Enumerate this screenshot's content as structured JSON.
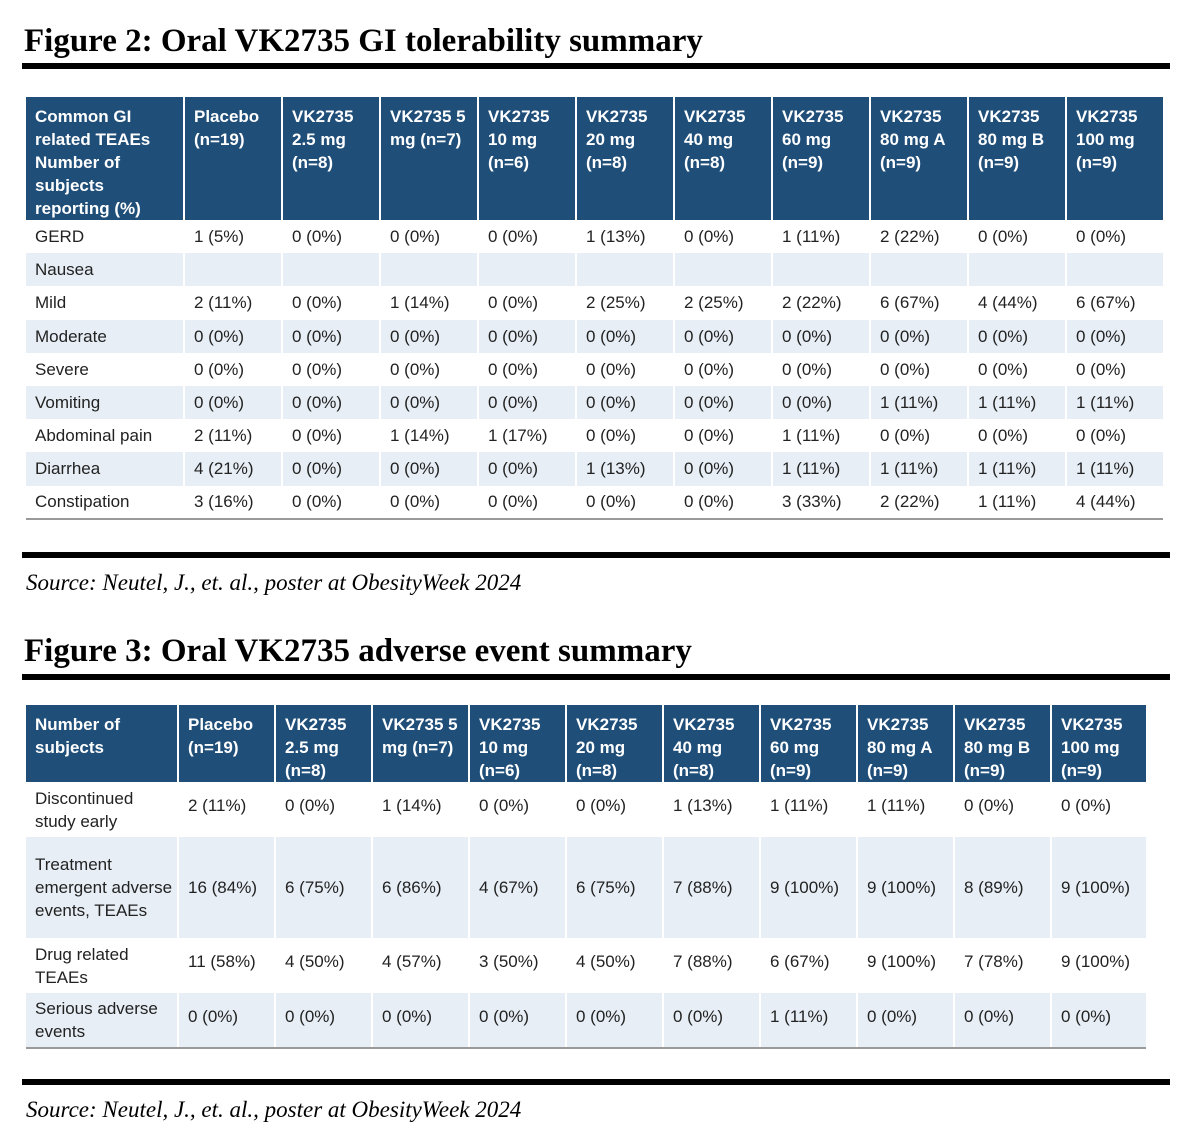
{
  "figure2": {
    "title": "Figure 2: Oral VK2735 GI tolerability summary",
    "headers": [
      "Common GI related TEAEs Number of subjects reporting (%)",
      "Placebo (n=19)",
      "VK2735 2.5 mg (n=8)",
      "VK2735 5 mg (n=7)",
      "VK2735 10 mg (n=6)",
      "VK2735 20 mg (n=8)",
      "VK2735 40 mg (n=8)",
      "VK2735 60 mg (n=9)",
      "VK2735 80 mg A (n=9)",
      "VK2735 80 mg B (n=9)",
      "VK2735 100 mg (n=9)"
    ],
    "rows": [
      [
        "GERD",
        "1 (5%)",
        "0 (0%)",
        "0 (0%)",
        "0 (0%)",
        "1 (13%)",
        "0 (0%)",
        "1 (11%)",
        "2 (22%)",
        "0 (0%)",
        "0 (0%)"
      ],
      [
        "Nausea",
        "",
        "",
        "",
        "",
        "",
        "",
        "",
        "",
        "",
        ""
      ],
      [
        "Mild",
        "2 (11%)",
        "0 (0%)",
        "1 (14%)",
        "0 (0%)",
        "2 (25%)",
        "2 (25%)",
        "2 (22%)",
        "6 (67%)",
        "4 (44%)",
        "6 (67%)"
      ],
      [
        "Moderate",
        "0 (0%)",
        "0 (0%)",
        "0 (0%)",
        "0 (0%)",
        "0 (0%)",
        "0 (0%)",
        "0 (0%)",
        "0 (0%)",
        "0 (0%)",
        "0 (0%)"
      ],
      [
        "Severe",
        "0 (0%)",
        "0 (0%)",
        "0 (0%)",
        "0 (0%)",
        "0 (0%)",
        "0 (0%)",
        "0 (0%)",
        "0 (0%)",
        "0 (0%)",
        "0 (0%)"
      ],
      [
        "Vomiting",
        "0 (0%)",
        "0 (0%)",
        "0 (0%)",
        "0 (0%)",
        "0 (0%)",
        "0 (0%)",
        "0 (0%)",
        "1 (11%)",
        "1 (11%)",
        "1 (11%)"
      ],
      [
        "Abdominal pain",
        "2 (11%)",
        "0 (0%)",
        "1 (14%)",
        "1 (17%)",
        "0 (0%)",
        "0 (0%)",
        "1 (11%)",
        "0 (0%)",
        "0 (0%)",
        "0 (0%)"
      ],
      [
        "Diarrhea",
        "4 (21%)",
        "0 (0%)",
        "0 (0%)",
        "0 (0%)",
        "1 (13%)",
        "0 (0%)",
        "1 (11%)",
        "1 (11%)",
        "1 (11%)",
        "1 (11%)"
      ],
      [
        "Constipation",
        "3 (16%)",
        "0 (0%)",
        "0 (0%)",
        "0 (0%)",
        "0 (0%)",
        "0 (0%)",
        "3 (33%)",
        "2 (22%)",
        "1 (11%)",
        "4 (44%)"
      ]
    ],
    "source": "Source: Neutel, J., et. al., poster at ObesityWeek 2024"
  },
  "figure3": {
    "title": "Figure 3: Oral VK2735 adverse event summary",
    "headers": [
      "Number of subjects",
      "Placebo (n=19)",
      "VK2735 2.5 mg (n=8)",
      "VK2735 5 mg (n=7)",
      "VK2735 10 mg (n=6)",
      "VK2735 20 mg (n=8)",
      "VK2735 40 mg (n=8)",
      "VK2735 60 mg (n=9)",
      "VK2735 80 mg A (n=9)",
      "VK2735 80 mg B (n=9)",
      "VK2735 100 mg (n=9)"
    ],
    "rows": [
      [
        "Discontinued study early",
        "2 (11%)",
        "0 (0%)",
        "1 (14%)",
        "0 (0%)",
        "0 (0%)",
        "1 (13%)",
        "1 (11%)",
        "1 (11%)",
        "0 (0%)",
        "0 (0%)"
      ],
      [
        "Treatment emergent adverse events, TEAEs",
        "16 (84%)",
        "6 (75%)",
        "6 (86%)",
        "4 (67%)",
        "6 (75%)",
        "7 (88%)",
        "9 (100%)",
        "9 (100%)",
        "8 (89%)",
        "9 (100%)"
      ],
      [
        "Drug related TEAEs",
        "11 (58%)",
        "4 (50%)",
        "4 (57%)",
        "3 (50%)",
        "4 (50%)",
        "7 (88%)",
        "6 (67%)",
        "9 (100%)",
        "7 (78%)",
        "9 (100%)"
      ],
      [
        "Serious adverse events",
        "0 (0%)",
        "0 (0%)",
        "0 (0%)",
        "0 (0%)",
        "0 (0%)",
        "0 (0%)",
        "1 (11%)",
        "0 (0%)",
        "0 (0%)",
        "0 (0%)"
      ]
    ],
    "source": "Source: Neutel, J., et. al., poster at ObesityWeek 2024"
  }
}
